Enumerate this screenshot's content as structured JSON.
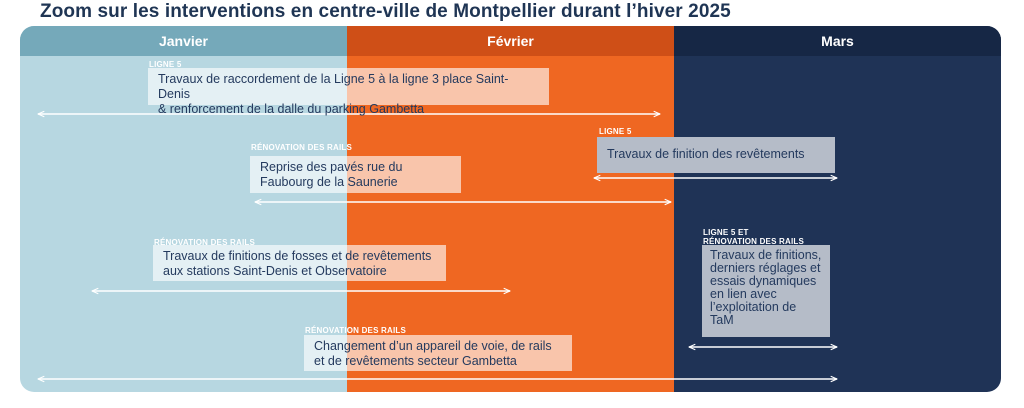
{
  "title": "Zoom sur les interventions en centre-ville de Montpellier durant l’hiver 2025",
  "months": [
    "Janvier",
    "Février",
    "Mars"
  ],
  "colors": {
    "janvier": "#b7d7e1",
    "fevrier": "#ef6722",
    "mars": "#1f3356",
    "text": "#1f3554"
  },
  "interventions": [
    {
      "tag": "LIGNE 5",
      "text": "Travaux de raccordement de la Ligne 5 à la ligne 3 place Saint-Denis\n& renforcement de la dalle du parking Gambetta"
    },
    {
      "tag": "LIGNE 5",
      "text": "Travaux de finition des revêtements"
    },
    {
      "tag": "RÉNOVATION DES RAILS",
      "text": "Reprise des pavés rue du\nFaubourg de la Saunerie"
    },
    {
      "tag": "RÉNOVATION DES RAILS",
      "text": "Travaux de finitions de fosses et de revêtements\naux stations Saint-Denis et Observatoire"
    },
    {
      "tag": "LIGNE 5  ET\nRÉNOVATION DES RAILS",
      "text": "Travaux de finitions,\nderniers réglages et\nessais dynamiques\nen lien avec\nl’exploitation de\nTaM"
    },
    {
      "tag": "RÉNOVATION DES RAILS",
      "text": "Changement d’un appareil de voie, de rails\net de revêtements secteur Gambetta"
    }
  ]
}
